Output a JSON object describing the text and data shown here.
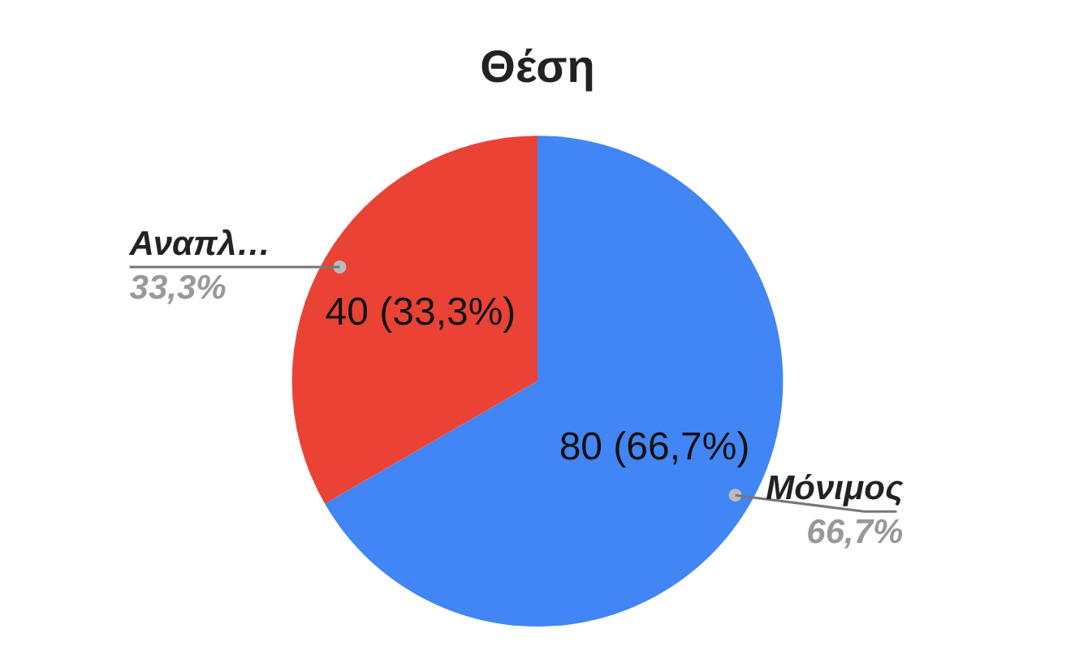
{
  "chart_data": {
    "type": "pie",
    "title": "Θέση",
    "categories": [
      "Μόνιμος",
      "Αναπλ…"
    ],
    "values": [
      80,
      40
    ],
    "colors": [
      "#4285f4",
      "#ea4335"
    ],
    "value_labels": [
      "80 (66,7%)",
      "40 (33,3%)"
    ],
    "annotations": [
      "66,7%",
      "33,3%"
    ],
    "legend": false
  }
}
